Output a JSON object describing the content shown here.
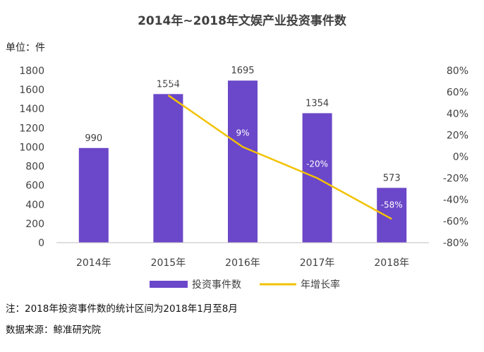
{
  "chart_data": {
    "type": "bar",
    "title": "2014年~2018年文娱产业投资事件数",
    "unit_label": "单位：件",
    "categories": [
      "2014年",
      "2015年",
      "2016年",
      "2017年",
      "2018年"
    ],
    "series": [
      {
        "name": "投资事件数",
        "type": "bar",
        "axis": "left",
        "color": "#6B47C9",
        "values": [
          990,
          1554,
          1695,
          1354,
          573
        ],
        "labels": [
          "990",
          "1554",
          "1695",
          "1354",
          "573"
        ]
      },
      {
        "name": "年增长率",
        "type": "line",
        "axis": "right",
        "color": "#F2C200",
        "values": [
          null,
          57,
          9,
          -20,
          -58
        ],
        "labels": [
          "",
          "57%",
          "9%",
          "-20%",
          "-58%"
        ]
      }
    ],
    "y_left": {
      "min": 0,
      "max": 1800,
      "step": 200,
      "ticks": [
        "0",
        "200",
        "400",
        "600",
        "800",
        "1000",
        "1200",
        "1400",
        "1600",
        "1800"
      ]
    },
    "y_right": {
      "min": -80,
      "max": 80,
      "step": 20,
      "ticks": [
        "-80%",
        "-60%",
        "-40%",
        "-20%",
        "0%",
        "20%",
        "40%",
        "60%",
        "80%"
      ]
    },
    "grid": false,
    "legend": "bottom"
  },
  "notes": {
    "note": "注：2018年投资事件数的统计区间为2018年1月至8月",
    "source": "数据来源：鲸准研究院"
  }
}
